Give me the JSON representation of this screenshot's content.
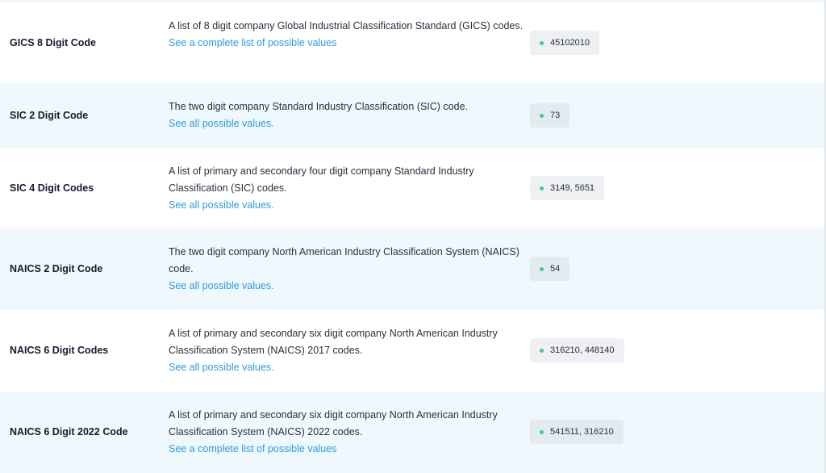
{
  "rows": [
    {
      "name": "GICS 8 Digit Code",
      "description": "A list of 8 digit company Global Industrial Classification Standard (GICS) codes.",
      "link": "See a complete list of possible values",
      "example": "45102010"
    },
    {
      "name": "SIC 2 Digit Code",
      "description": "The two digit company Standard Industry Classification (SIC) code.",
      "link": "See all possible values.",
      "example": "73"
    },
    {
      "name": "SIC 4 Digit Codes",
      "description": "A list of primary and secondary four digit company Standard Industry Classification (SIC) codes.",
      "link": "See all possible values.",
      "example": "3149, 5651"
    },
    {
      "name": "NAICS 2 Digit Code",
      "description": "The two digit company North American Industry Classification System (NAICS) code.",
      "link": "See all possible values.",
      "example": "54"
    },
    {
      "name": "NAICS 6 Digit Codes",
      "description": "A list of primary and secondary six digit company North American Industry Classification System (NAICS) 2017 codes.",
      "link": "See all possible values.",
      "example": "316210, 448140"
    },
    {
      "name": "NAICS 6 Digit 2022 Code",
      "description": "A list of primary and secondary six digit company North American Industry Classification System (NAICS) 2022 codes.",
      "link": "See a complete list of possible values",
      "example": "541511, 316210"
    }
  ],
  "colors": {
    "row_alt": "#eef8fd",
    "link": "#2b9be3",
    "dot": "#3ccf8e"
  }
}
